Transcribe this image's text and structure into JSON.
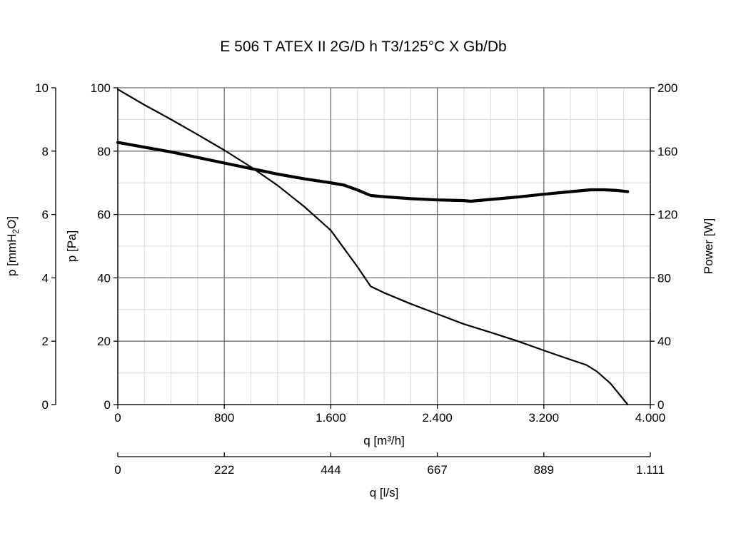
{
  "chart_data": {
    "type": "line",
    "title": "E 506 T ATEX II 2G/D h T3/125°C X Gb/Db",
    "x_axis": {
      "label": "q [m³/h]",
      "range": [
        0,
        4000
      ],
      "ticks": [
        0,
        800,
        1600,
        2400,
        3200,
        4000
      ],
      "tick_labels": [
        "0",
        "800",
        "1.600",
        "2.400",
        "3.200",
        "4.000"
      ]
    },
    "x_axis_secondary": {
      "label": "q [l/s]",
      "range": [
        0,
        1111
      ],
      "tick_labels": [
        "0",
        "222",
        "444",
        "667",
        "889",
        "1.111"
      ]
    },
    "y_axis_left": {
      "label": "p [Pa]",
      "range": [
        0,
        100
      ],
      "ticks": [
        0,
        20,
        40,
        60,
        80,
        100
      ],
      "tick_labels": [
        "0",
        "20",
        "40",
        "60",
        "80",
        "100"
      ]
    },
    "y_axis_left_outer": {
      "label_parts": [
        "p [mmH",
        "2",
        "O]"
      ],
      "range": [
        0,
        10
      ],
      "tick_labels": [
        "0",
        "2",
        "4",
        "6",
        "8",
        "10"
      ]
    },
    "y_axis_right": {
      "label": "Power [W]",
      "range": [
        0,
        200
      ],
      "tick_labels": [
        "0",
        "40",
        "80",
        "120",
        "160",
        "200"
      ]
    },
    "grid": true,
    "colors": {
      "curve": "#000000",
      "major_grid": "#6e6e6e",
      "minor_grid": "#d9d9d9"
    },
    "series": [
      {
        "axis": "left",
        "line_weight": "thin",
        "x": [
          0,
          200,
          400,
          600,
          800,
          1000,
          1200,
          1400,
          1600,
          1800,
          1900,
          2000,
          2200,
          2400,
          2600,
          2800,
          3000,
          3200,
          3400,
          3520,
          3600,
          3700,
          3830
        ],
        "y": [
          99.5,
          94.6,
          90.0,
          85.2,
          80.3,
          75.0,
          69.2,
          62.5,
          55.0,
          43.5,
          37.3,
          35.3,
          31.8,
          28.6,
          25.4,
          22.8,
          20.1,
          17.1,
          14.2,
          12.5,
          10.4,
          6.7,
          0
        ]
      },
      {
        "axis": "right",
        "line_weight": "thick",
        "x": [
          0,
          200,
          400,
          600,
          800,
          1000,
          1200,
          1400,
          1600,
          1700,
          1800,
          1900,
          2000,
          2200,
          2400,
          2600,
          2650,
          2800,
          3000,
          3200,
          3400,
          3550,
          3650,
          3750,
          3830
        ],
        "y": [
          165.5,
          162.5,
          159.5,
          156.0,
          152.5,
          149.0,
          145.5,
          142.5,
          140.0,
          138.5,
          135.5,
          132.0,
          131.2,
          130.0,
          129.2,
          128.8,
          128.4,
          129.5,
          131.0,
          132.8,
          134.4,
          135.6,
          135.6,
          135.2,
          134.4
        ]
      }
    ]
  }
}
